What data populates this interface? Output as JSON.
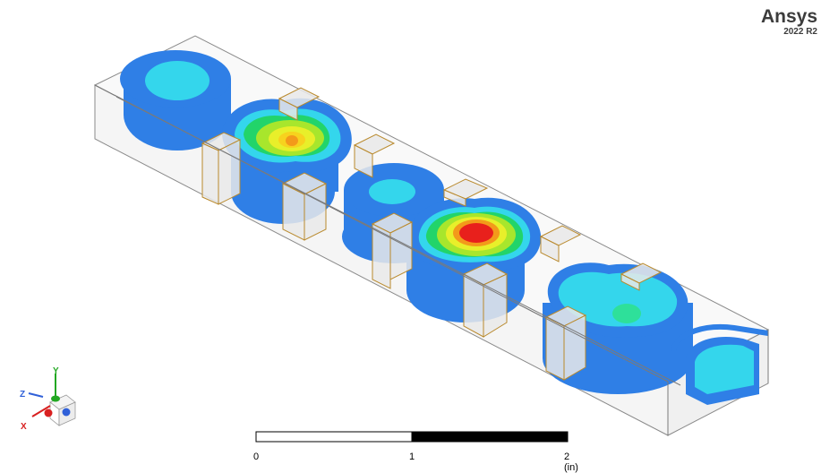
{
  "brand": {
    "name": "Ansys",
    "version": "2022 R2"
  },
  "triad": {
    "x_label": "X",
    "y_label": "Y",
    "z_label": "Z"
  },
  "scale_bar": {
    "label_0": "0",
    "label_1": "1",
    "label_2": "2 (in)"
  },
  "colors": {
    "blue": "#2f7fe6",
    "cyan": "#34d6ec",
    "green": "#22d46a",
    "yellow": "#e8ef2a",
    "orange": "#f39a1a",
    "red": "#e8201c",
    "edge": "#b9892c"
  },
  "icons": [
    "triad-axis-icon"
  ]
}
